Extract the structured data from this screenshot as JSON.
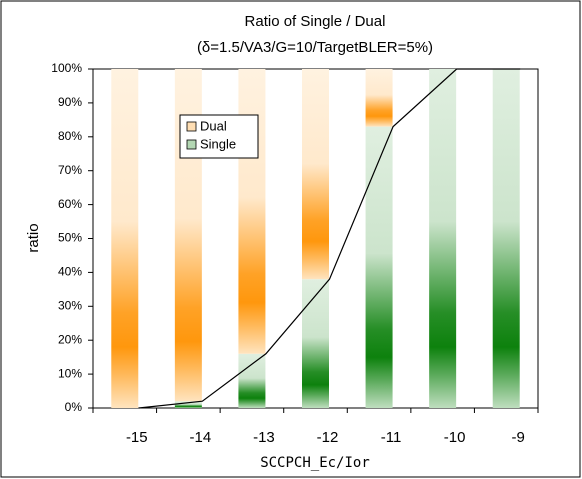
{
  "chart_data": {
    "type": "stacked-bar",
    "title": "Ratio of Single / Dual",
    "subtitle": "(δ=1.5/VA3/G=10/TargetBLER=5%)",
    "x_label": "SCCPCH_Ec/Ior",
    "y_label": "ratio",
    "categories": [
      "-15",
      "-14",
      "-13",
      "-12",
      "-11",
      "-10",
      "-9"
    ],
    "series": [
      {
        "name": "Dual",
        "color": "#ff9200",
        "values": [
          100,
          98,
          84,
          62,
          17,
          0,
          0
        ]
      },
      {
        "name": "Single",
        "color": "#007a00",
        "values": [
          0,
          2,
          16,
          38,
          83,
          100,
          100
        ]
      }
    ],
    "ylim": [
      0,
      100
    ],
    "yticks": [
      {
        "value": 0,
        "label": "0%"
      },
      {
        "value": 10,
        "label": "10%"
      },
      {
        "value": 20,
        "label": "20%"
      },
      {
        "value": 30,
        "label": "30%"
      },
      {
        "value": 40,
        "label": "40%"
      },
      {
        "value": 50,
        "label": "50%"
      },
      {
        "value": 60,
        "label": "60%"
      },
      {
        "value": 70,
        "label": "70%"
      },
      {
        "value": 80,
        "label": "80%"
      },
      {
        "value": 90,
        "label": "90%"
      },
      {
        "value": 100,
        "label": "100%"
      }
    ],
    "legend": "upper left"
  }
}
